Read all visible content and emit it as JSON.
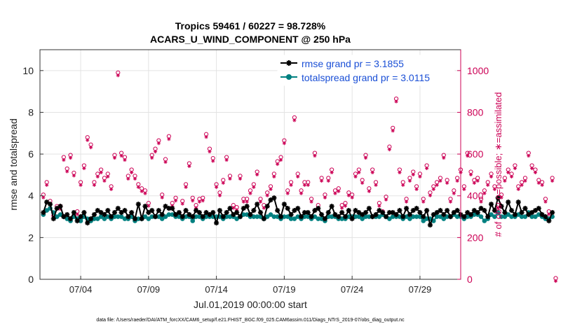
{
  "chart_data": {
    "type": "line",
    "title_line1": "Tropics 59461 / 60227 = 98.728%",
    "title_line2": "ACARS_U_WIND_COMPONENT @ 250 hPa",
    "ylabel_left": "rmse and totalspread",
    "ylabel_right": "# of obs: o=possible; ∗=assimilated",
    "xlabel": "Jul.01,2019 00:00:00 start",
    "footer": "data file: /Users/raeder/DAI/ATM_forcXX/CAM6_setup/f.e21.FHIST_BGC.f09_025.CAM6assim.011/Diags_NTrS_2019-07/obs_diag_output.nc",
    "ylim_left": [
      0,
      11
    ],
    "ylim_right": [
      0,
      1100
    ],
    "xlim_days": [
      1.0,
      32.0
    ],
    "yticks_left": [
      "0",
      "2",
      "4",
      "6",
      "8",
      "10"
    ],
    "yticks_right": [
      "0",
      "200",
      "400",
      "600",
      "800",
      "1000"
    ],
    "xticks": [
      {
        "day": 4,
        "label": "07/04"
      },
      {
        "day": 9,
        "label": "07/09"
      },
      {
        "day": 14,
        "label": "07/14"
      },
      {
        "day": 19,
        "label": "07/19"
      },
      {
        "day": 24,
        "label": "07/24"
      },
      {
        "day": 29,
        "label": "07/29"
      }
    ],
    "time_step_days": 0.25,
    "start_day": 1.25,
    "legend": [
      {
        "label": "rmse grand pr = 3.1855",
        "color": "#000000",
        "marker": "asterisk"
      },
      {
        "label": "totalspread grand pr = 3.0115",
        "color": "#008080",
        "marker": "circle"
      }
    ],
    "series": [
      {
        "name": "rmse",
        "axis": "left",
        "color": "#000000",
        "values": [
          3.2,
          3.7,
          3.6,
          2.9,
          3.4,
          3.5,
          3.0,
          3.1,
          2.9,
          3.2,
          2.8,
          3.0,
          3.2,
          2.7,
          2.9,
          3.1,
          3.3,
          3.2,
          3.1,
          3.3,
          3.0,
          3.2,
          3.4,
          3.2,
          3.3,
          3.0,
          3.2,
          2.9,
          3.6,
          2.9,
          3.5,
          3.2,
          3.3,
          3.0,
          3.3,
          3.1,
          3.5,
          3.4,
          3.4,
          3.1,
          3.2,
          3.0,
          3.3,
          3.1,
          3.0,
          3.3,
          3.2,
          3.0,
          3.2,
          3.1,
          3.2,
          2.7,
          3.3,
          3.0,
          3.2,
          3.4,
          3.1,
          3.2,
          3.0,
          3.4,
          3.5,
          3.1,
          3.3,
          3.6,
          3.2,
          2.9,
          3.5,
          3.8,
          3.9,
          3.3,
          3.0,
          3.6,
          3.4,
          3.1,
          3.3,
          3.4,
          3.0,
          3.2,
          3.2,
          3.0,
          3.3,
          3.4,
          3.1,
          2.9,
          3.2,
          3.5,
          3.1,
          3.0,
          3.2,
          3.0,
          3.3,
          2.9,
          3.3,
          3.2,
          3.1,
          3.2,
          3.4,
          3.0,
          3.1,
          3.3,
          3.2,
          3.0,
          3.2,
          3.2,
          3.1,
          3.3,
          3.0,
          3.4,
          3.1,
          3.3,
          3.4,
          3.2,
          3.0,
          3.3,
          2.6,
          3.1,
          3.2,
          3.3,
          3.1,
          3.3,
          3.0,
          3.2,
          3.3,
          3.1,
          3.0,
          3.2,
          3.1,
          3.3,
          3.2,
          3.4,
          3.3,
          3.0,
          3.6,
          3.3,
          3.9,
          3.5,
          3.2,
          3.7,
          3.3,
          3.1,
          3.7,
          3.2,
          3.4,
          3.1,
          3.2,
          3.3,
          3.4,
          3.1,
          3.0,
          2.8,
          3.2
        ]
      },
      {
        "name": "totalspread",
        "axis": "left",
        "color": "#008080",
        "values": [
          3.1,
          3.3,
          3.4,
          3.2,
          3.0,
          3.1,
          3.0,
          2.9,
          2.8,
          3.0,
          2.9,
          2.8,
          3.0,
          2.9,
          2.8,
          2.9,
          2.9,
          3.0,
          2.9,
          3.0,
          2.9,
          3.0,
          3.0,
          3.0,
          2.9,
          2.9,
          3.0,
          2.8,
          2.9,
          2.9,
          3.0,
          2.9,
          3.0,
          3.0,
          3.0,
          2.9,
          3.0,
          3.1,
          3.1,
          3.0,
          3.0,
          2.9,
          3.0,
          3.0,
          2.8,
          3.0,
          3.0,
          2.9,
          3.0,
          3.0,
          3.0,
          3.0,
          3.0,
          2.9,
          3.0,
          3.0,
          3.0,
          2.9,
          3.0,
          3.1,
          3.1,
          3.0,
          3.0,
          3.0,
          3.0,
          2.9,
          3.0,
          3.1,
          3.0,
          3.0,
          2.9,
          3.0,
          3.0,
          2.9,
          2.9,
          3.0,
          2.9,
          3.0,
          3.0,
          2.9,
          3.0,
          2.9,
          2.9,
          2.8,
          3.0,
          3.0,
          3.0,
          2.9,
          2.9,
          2.9,
          3.0,
          3.0,
          3.0,
          3.0,
          2.9,
          3.0,
          3.0,
          3.0,
          3.0,
          3.0,
          3.1,
          3.0,
          2.9,
          3.0,
          3.0,
          3.0,
          2.9,
          3.0,
          2.9,
          3.0,
          3.0,
          3.0,
          2.8,
          2.9,
          2.9,
          2.8,
          3.0,
          3.0,
          2.9,
          3.0,
          3.0,
          3.1,
          3.0,
          3.0,
          2.9,
          3.0,
          3.0,
          3.1,
          3.1,
          3.0,
          2.8,
          2.9,
          3.1,
          3.0,
          3.2,
          3.0,
          3.0,
          3.1,
          3.0,
          3.0,
          3.1,
          3.0,
          3.0,
          3.2,
          3.0,
          3.0,
          3.1,
          3.0,
          2.9,
          2.9,
          3.0
        ]
      },
      {
        "name": "obs_possible",
        "axis": "right",
        "color": "#cc0055",
        "marker": "circle",
        "values": [
          400,
          460,
          370,
          300,
          345,
          345,
          580,
          525,
          590,
          505,
          320,
          460,
          540,
          675,
          640,
          460,
          500,
          520,
          480,
          500,
          440,
          590,
          985,
          600,
          580,
          490,
          520,
          490,
          450,
          430,
          420,
          360,
          590,
          620,
          660,
          400,
          570,
          680,
          360,
          385,
          310,
          370,
          450,
          550,
          385,
          350,
          380,
          385,
          690,
          620,
          575,
          450,
          410,
          470,
          580,
          490,
          350,
          340,
          490,
          380,
          380,
          420,
          450,
          510,
          380,
          350,
          410,
          440,
          500,
          560,
          580,
          660,
          420,
          460,
          770,
          500,
          420,
          460,
          460,
          380,
          600,
          350,
          480,
          400,
          480,
          520,
          420,
          430,
          350,
          360,
          410,
          400,
          500,
          520,
          470,
          590,
          430,
          520,
          460,
          360,
          320,
          390,
          630,
          720,
          860,
          520,
          460,
          380,
          480,
          510,
          440,
          500,
          380,
          540,
          410,
          440,
          460,
          480,
          590,
          470,
          380,
          420,
          480,
          520,
          440,
          600,
          510,
          470,
          480,
          380,
          420,
          460,
          500,
          440,
          350,
          400,
          480,
          520,
          500,
          540,
          440,
          460,
          480,
          600,
          540,
          520,
          470,
          460,
          380,
          320,
          480,
          0
        ]
      }
    ]
  }
}
